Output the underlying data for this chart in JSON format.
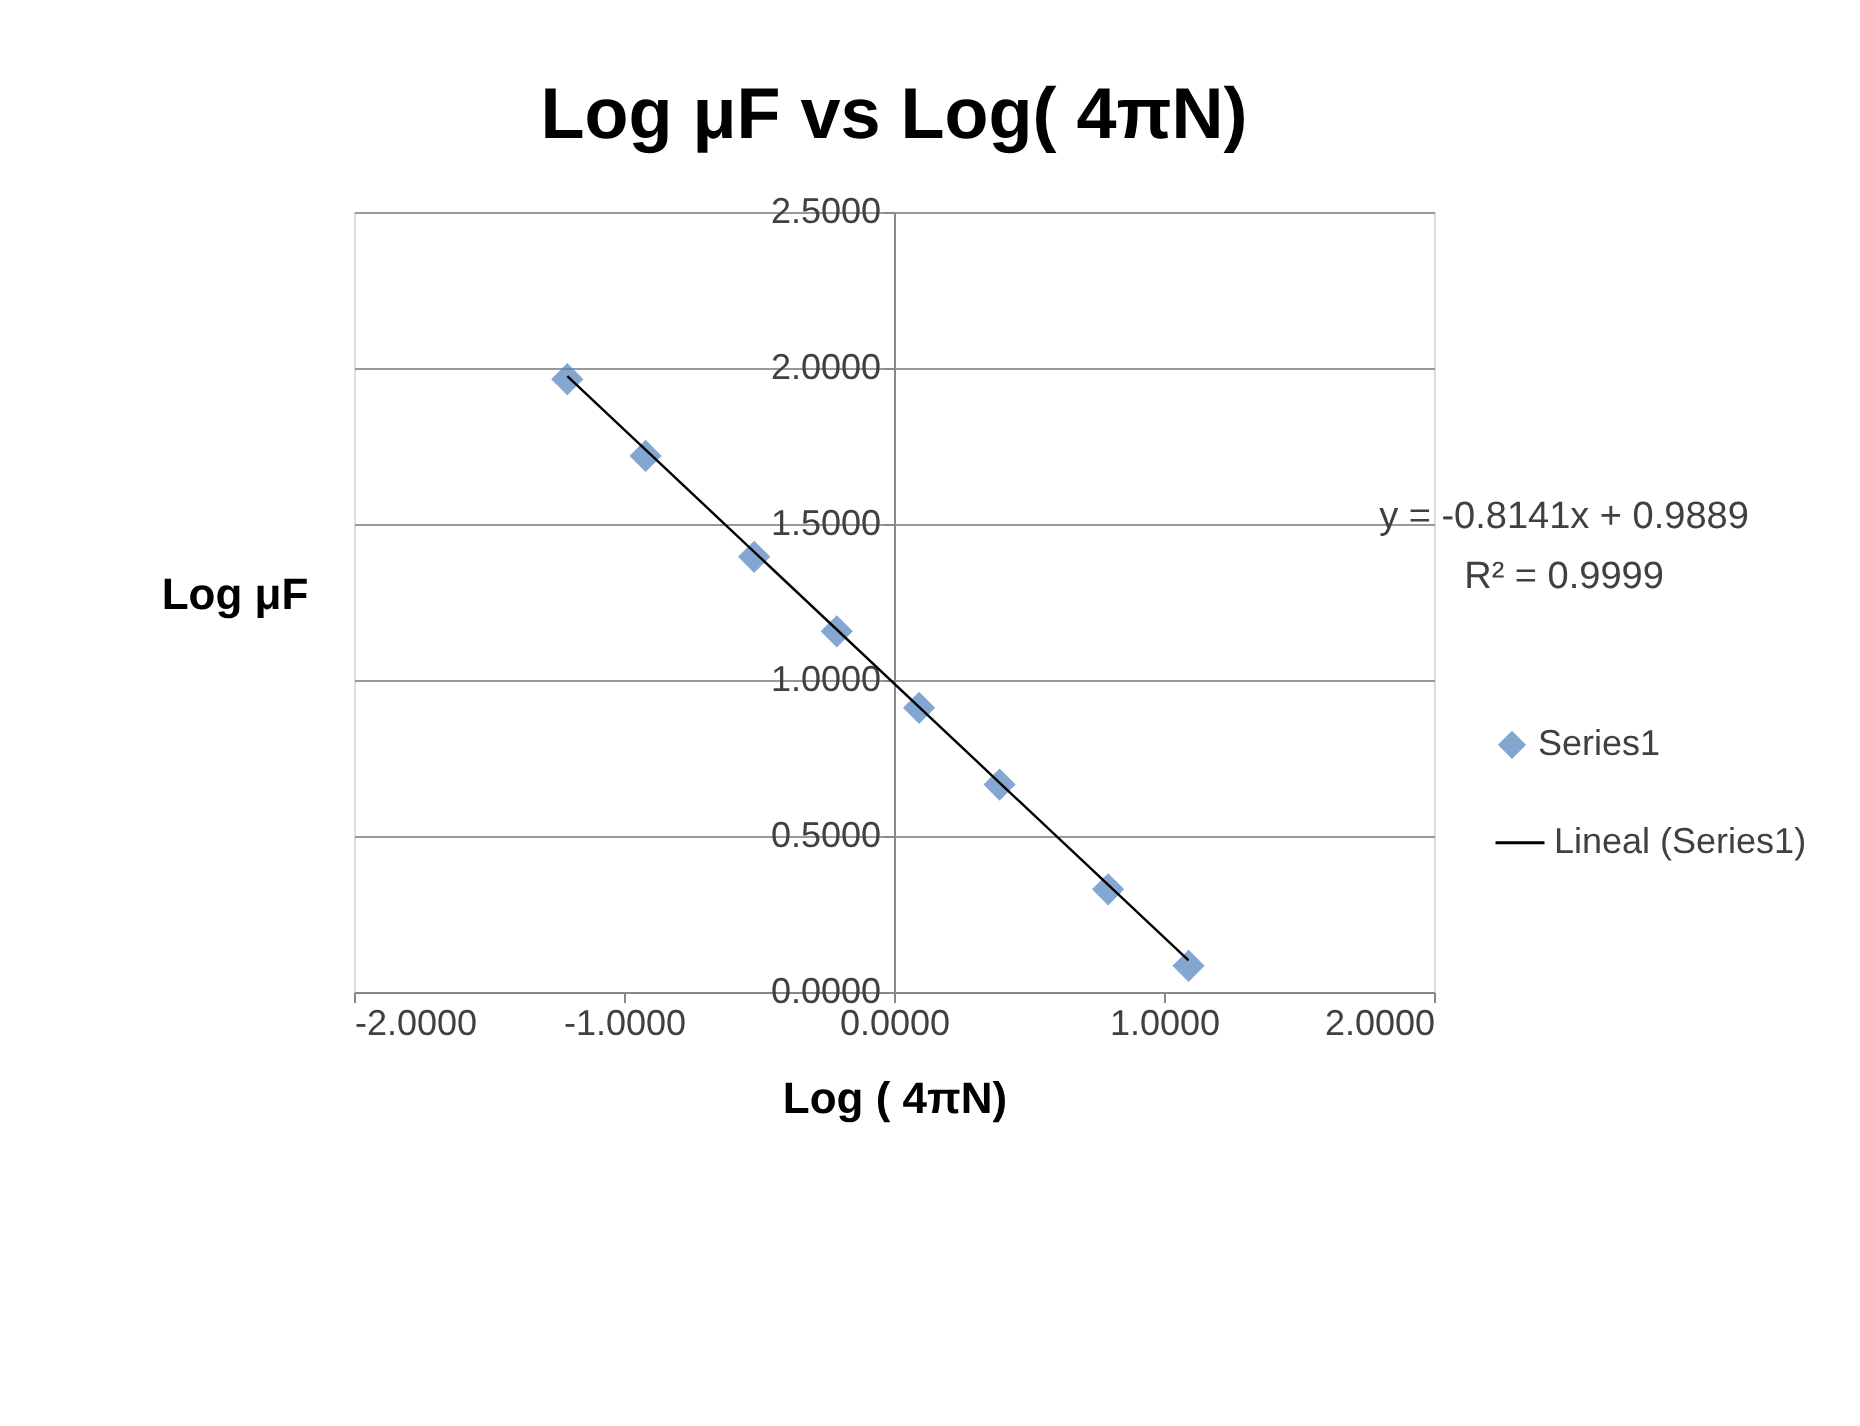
{
  "chart_data": {
    "type": "scatter",
    "title": "Log μF vs Log( 4πN)",
    "xlabel": "Log ( 4πN)",
    "ylabel": "Log μF",
    "x": [
      -1.21,
      -0.92,
      -0.518,
      -0.212,
      0.093,
      0.391,
      0.793,
      1.091
    ],
    "series": [
      {
        "name": "Series1",
        "color": "#4f81bd",
        "marker": "diamond",
        "values": [
          1.964,
          1.718,
          1.395,
          1.156,
          0.911,
          0.665,
          0.329,
          0.084
        ]
      },
      {
        "name": "Lineal (Series1)",
        "type": "line",
        "color": "#000000",
        "x": [
          -1.21,
          1.091
        ],
        "values": [
          1.974,
          0.101
        ],
        "line_style": "solid"
      }
    ],
    "xlim": [
      -2,
      2
    ],
    "xticks": [
      {
        "value": -2,
        "label": "-2.0000"
      },
      {
        "value": -1,
        "label": "-1.0000"
      },
      {
        "value": 0,
        "label": "0.0000"
      },
      {
        "value": 1,
        "label": "1.0000"
      },
      {
        "value": 2,
        "label": "2.0000"
      }
    ],
    "ylim": [
      0,
      2.5
    ],
    "yticks": [
      {
        "value": 0,
        "label": "0.0000"
      },
      {
        "value": 0.5,
        "label": "0.5000"
      },
      {
        "value": 1,
        "label": "1.0000"
      },
      {
        "value": 1.5,
        "label": "1.5000"
      },
      {
        "value": 2,
        "label": "2.0000"
      },
      {
        "value": 2.5,
        "label": "2.5000"
      }
    ],
    "grid": "y",
    "legend": "right",
    "annotations": [
      "y = -0.8141x + 0.9889",
      "R² = 0.9999"
    ]
  }
}
